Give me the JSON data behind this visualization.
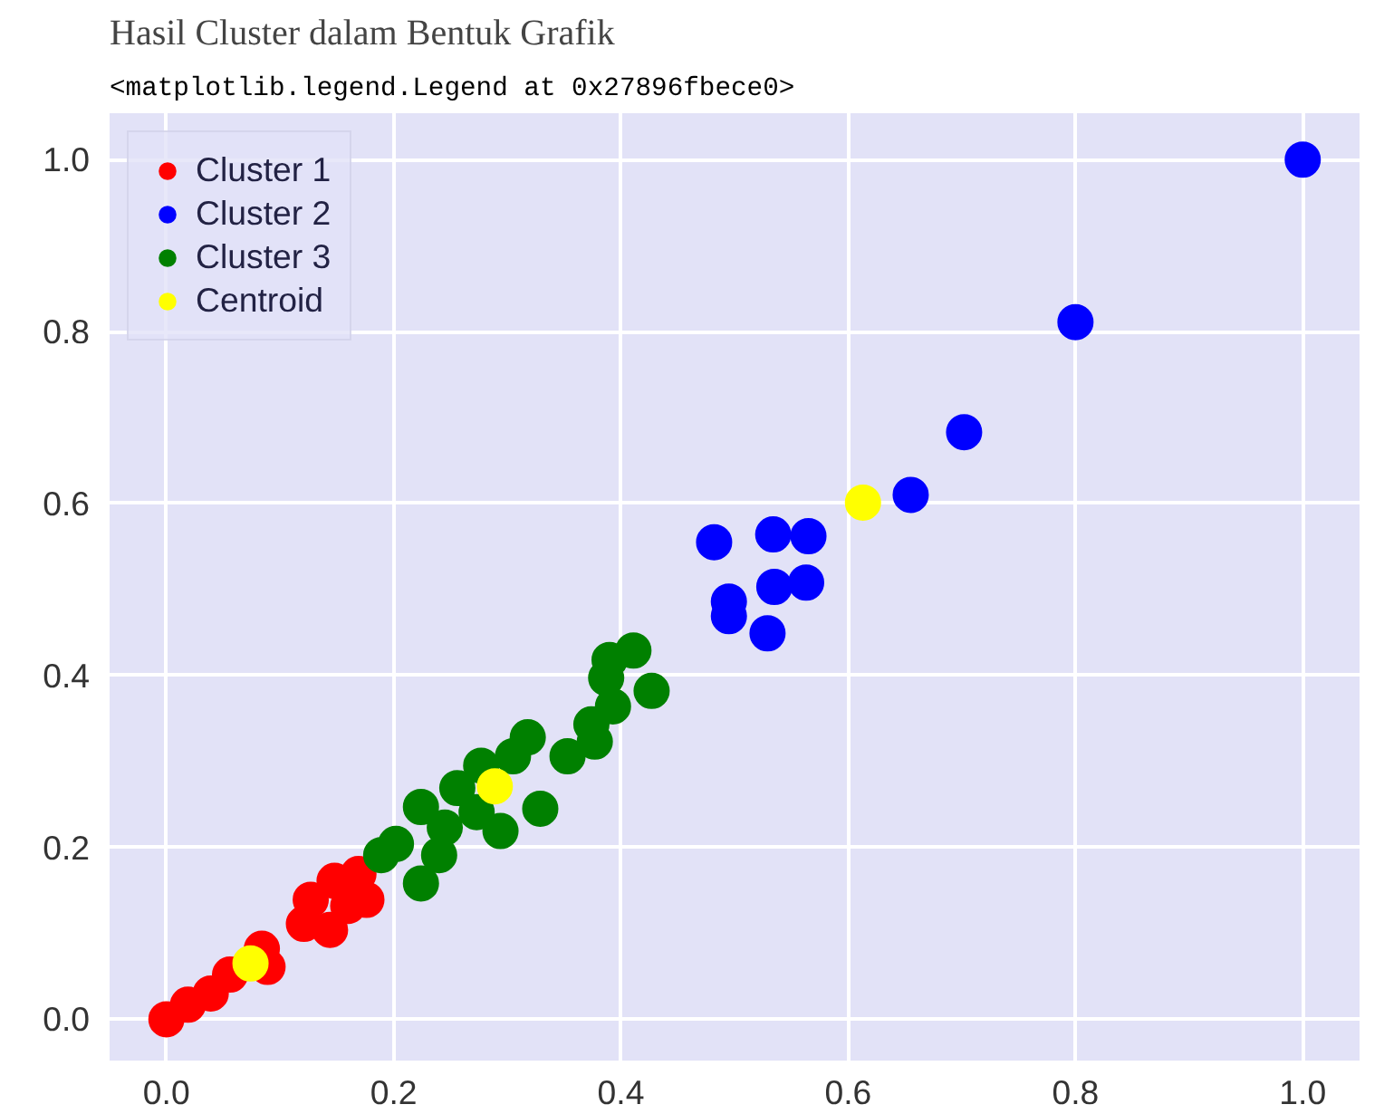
{
  "chart_data": {
    "type": "scatter",
    "title": "Hasil Cluster dalam Bentuk Grafik",
    "annotations": [
      "<matplotlib.legend.Legend at 0x27896fbece0>"
    ],
    "xlim": [
      -0.05,
      1.05
    ],
    "ylim": [
      -0.048,
      1.054
    ],
    "xticks": [
      {
        "value": 0,
        "label": "0.0"
      },
      0.2,
      0.4,
      0.6,
      0.8,
      {
        "value": 1,
        "label": "1.0"
      }
    ],
    "yticks": [
      {
        "value": 0,
        "label": "0.0"
      },
      0.2,
      0.4,
      0.6,
      0.8,
      {
        "value": 1,
        "label": "1.0"
      }
    ],
    "grid": true,
    "legend": "top left",
    "marker": "circle",
    "series": [
      {
        "name": "Cluster 1",
        "color": "#ff0000",
        "x": [
          0.0,
          0.019,
          0.039,
          0.056,
          0.084,
          0.089,
          0.121,
          0.127,
          0.148,
          0.169,
          0.176,
          0.144,
          0.16
        ],
        "values": [
          0.0,
          0.017,
          0.03,
          0.052,
          0.082,
          0.061,
          0.111,
          0.139,
          0.161,
          0.169,
          0.139,
          0.104,
          0.132
        ]
      },
      {
        "name": "Cluster 2",
        "color": "#0000ff",
        "x": [
          1.0,
          0.8,
          0.702,
          0.655,
          0.534,
          0.565,
          0.482,
          0.535,
          0.563,
          0.495,
          0.495,
          0.529
        ],
        "values": [
          1.0,
          0.811,
          0.683,
          0.61,
          0.564,
          0.562,
          0.555,
          0.503,
          0.508,
          0.486,
          0.469,
          0.449
        ]
      },
      {
        "name": "Cluster 3",
        "color": "#008000",
        "x": [
          0.411,
          0.39,
          0.427,
          0.387,
          0.393,
          0.374,
          0.377,
          0.353,
          0.318,
          0.305,
          0.277,
          0.329,
          0.294,
          0.256,
          0.224,
          0.245,
          0.202,
          0.189,
          0.224,
          0.24,
          0.273
        ],
        "values": [
          0.429,
          0.418,
          0.382,
          0.397,
          0.364,
          0.343,
          0.323,
          0.306,
          0.328,
          0.306,
          0.295,
          0.245,
          0.219,
          0.269,
          0.247,
          0.223,
          0.204,
          0.191,
          0.158,
          0.191,
          0.241
        ]
      },
      {
        "name": "Centroid",
        "color": "#ffff00",
        "x": [
          0.074,
          0.289,
          0.613
        ],
        "values": [
          0.065,
          0.271,
          0.601
        ]
      }
    ]
  }
}
